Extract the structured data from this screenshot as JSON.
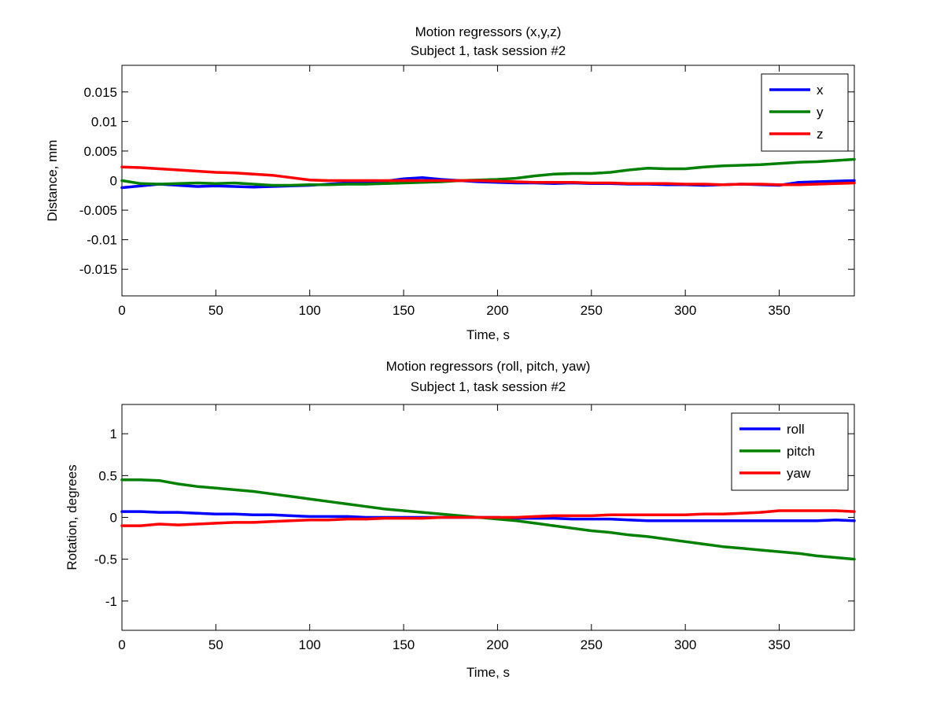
{
  "chart_data": [
    {
      "type": "line",
      "title": [
        "Motion regressors (x,y,z)",
        "Subject 1, task session #2"
      ],
      "xlabel": "Time, s",
      "ylabel": "Distance, mm",
      "xlim": [
        0,
        390
      ],
      "ylim": [
        -0.0195,
        0.0195
      ],
      "xticks": [
        0,
        50,
        100,
        150,
        200,
        250,
        300,
        350
      ],
      "xtick_labels": [
        "0",
        "50",
        "100",
        "150",
        "200",
        "250",
        "300",
        "350"
      ],
      "yticks": [
        0.015,
        0.01,
        0.005,
        0,
        -0.005,
        -0.01,
        -0.015
      ],
      "ytick_labels": [
        "0.015",
        "0.01",
        "0.005",
        "0",
        "-0.005",
        "-0.01",
        "-0.015"
      ],
      "grid": false,
      "legend_position": "top-right",
      "x": [
        0,
        10,
        20,
        30,
        40,
        50,
        60,
        70,
        80,
        90,
        100,
        110,
        120,
        130,
        140,
        150,
        160,
        170,
        180,
        190,
        200,
        210,
        220,
        230,
        240,
        250,
        260,
        270,
        280,
        290,
        300,
        310,
        320,
        330,
        340,
        350,
        360,
        370,
        380,
        390
      ],
      "series": [
        {
          "name": "x",
          "color": "#0000ff",
          "values": [
            -0.0012,
            -0.0009,
            -0.0006,
            -0.0008,
            -0.001,
            -0.0009,
            -0.001,
            -0.0011,
            -0.001,
            -0.0009,
            -0.0008,
            -0.0006,
            -0.0004,
            -0.0003,
            -0.0001,
            0.0003,
            0.0005,
            0.0002,
            0.0,
            -0.0002,
            -0.0003,
            -0.0004,
            -0.0004,
            -0.0005,
            -0.0004,
            -0.0005,
            -0.0005,
            -0.0006,
            -0.0006,
            -0.0007,
            -0.0007,
            -0.0008,
            -0.0007,
            -0.0006,
            -0.0007,
            -0.0008,
            -0.0003,
            -0.0002,
            -0.0001,
            0.0
          ]
        },
        {
          "name": "y",
          "color": "#008000",
          "values": [
            0.0,
            -0.0005,
            -0.0006,
            -0.0005,
            -0.0004,
            -0.0005,
            -0.0004,
            -0.0006,
            -0.0008,
            -0.0008,
            -0.0007,
            -0.0007,
            -0.0006,
            -0.0006,
            -0.0005,
            -0.0004,
            -0.0003,
            -0.0002,
            0.0,
            0.0001,
            0.0002,
            0.0004,
            0.0008,
            0.0011,
            0.0012,
            0.0012,
            0.0014,
            0.0018,
            0.0021,
            0.002,
            0.002,
            0.0023,
            0.0025,
            0.0026,
            0.0027,
            0.0029,
            0.0031,
            0.0032,
            0.0034,
            0.0036
          ]
        },
        {
          "name": "z",
          "color": "#ff0000",
          "values": [
            0.0023,
            0.0022,
            0.002,
            0.0018,
            0.0016,
            0.0014,
            0.0013,
            0.0011,
            0.0009,
            0.0005,
            0.0001,
            0.0,
            0.0,
            0.0,
            0.0,
            0.0,
            0.0,
            0.0,
            0.0,
            0.0,
            -0.0001,
            -0.0002,
            -0.0003,
            -0.0003,
            -0.0003,
            -0.0004,
            -0.0004,
            -0.0005,
            -0.0005,
            -0.0005,
            -0.0006,
            -0.0006,
            -0.0007,
            -0.0006,
            -0.0006,
            -0.0007,
            -0.0007,
            -0.0006,
            -0.0005,
            -0.0004
          ]
        }
      ]
    },
    {
      "type": "line",
      "title": [
        "Motion regressors (roll, pitch, yaw)",
        "Subject 1, task session #2"
      ],
      "xlabel": "Time, s",
      "ylabel": "Rotation, degrees",
      "xlim": [
        0,
        390
      ],
      "ylim": [
        -1.35,
        1.35
      ],
      "xticks": [
        0,
        50,
        100,
        150,
        200,
        250,
        300,
        350
      ],
      "xtick_labels": [
        "0",
        "50",
        "100",
        "150",
        "200",
        "250",
        "300",
        "350"
      ],
      "yticks": [
        1,
        0.5,
        0,
        -0.5,
        -1
      ],
      "ytick_labels": [
        "1",
        "0.5",
        "0",
        "-0.5",
        "-1"
      ],
      "grid": false,
      "legend_position": "top-right",
      "x": [
        0,
        10,
        20,
        30,
        40,
        50,
        60,
        70,
        80,
        90,
        100,
        110,
        120,
        130,
        140,
        150,
        160,
        170,
        180,
        190,
        200,
        210,
        220,
        230,
        240,
        250,
        260,
        270,
        280,
        290,
        300,
        310,
        320,
        330,
        340,
        350,
        360,
        370,
        380,
        390
      ],
      "series": [
        {
          "name": "roll",
          "color": "#0000ff",
          "values": [
            0.07,
            0.07,
            0.06,
            0.06,
            0.05,
            0.04,
            0.04,
            0.03,
            0.03,
            0.02,
            0.01,
            0.01,
            0.01,
            0.0,
            0.0,
            0.0,
            0.0,
            0.0,
            0.0,
            0.0,
            0.0,
            -0.01,
            -0.01,
            -0.01,
            -0.02,
            -0.02,
            -0.02,
            -0.03,
            -0.04,
            -0.04,
            -0.04,
            -0.04,
            -0.04,
            -0.04,
            -0.04,
            -0.04,
            -0.04,
            -0.04,
            -0.03,
            -0.04
          ]
        },
        {
          "name": "pitch",
          "color": "#008000",
          "values": [
            0.45,
            0.45,
            0.44,
            0.4,
            0.37,
            0.35,
            0.33,
            0.31,
            0.28,
            0.25,
            0.22,
            0.19,
            0.16,
            0.13,
            0.1,
            0.08,
            0.06,
            0.04,
            0.02,
            0.0,
            -0.02,
            -0.04,
            -0.07,
            -0.1,
            -0.13,
            -0.16,
            -0.18,
            -0.21,
            -0.23,
            -0.26,
            -0.29,
            -0.32,
            -0.35,
            -0.37,
            -0.39,
            -0.41,
            -0.43,
            -0.46,
            -0.48,
            -0.5
          ]
        },
        {
          "name": "yaw",
          "color": "#ff0000",
          "values": [
            -0.1,
            -0.1,
            -0.08,
            -0.09,
            -0.08,
            -0.07,
            -0.06,
            -0.06,
            -0.05,
            -0.04,
            -0.03,
            -0.03,
            -0.02,
            -0.02,
            -0.01,
            -0.01,
            -0.01,
            0.0,
            0.0,
            0.0,
            0.0,
            0.0,
            0.01,
            0.02,
            0.02,
            0.02,
            0.03,
            0.03,
            0.03,
            0.03,
            0.03,
            0.04,
            0.04,
            0.05,
            0.06,
            0.08,
            0.08,
            0.08,
            0.08,
            0.07
          ]
        }
      ]
    }
  ]
}
